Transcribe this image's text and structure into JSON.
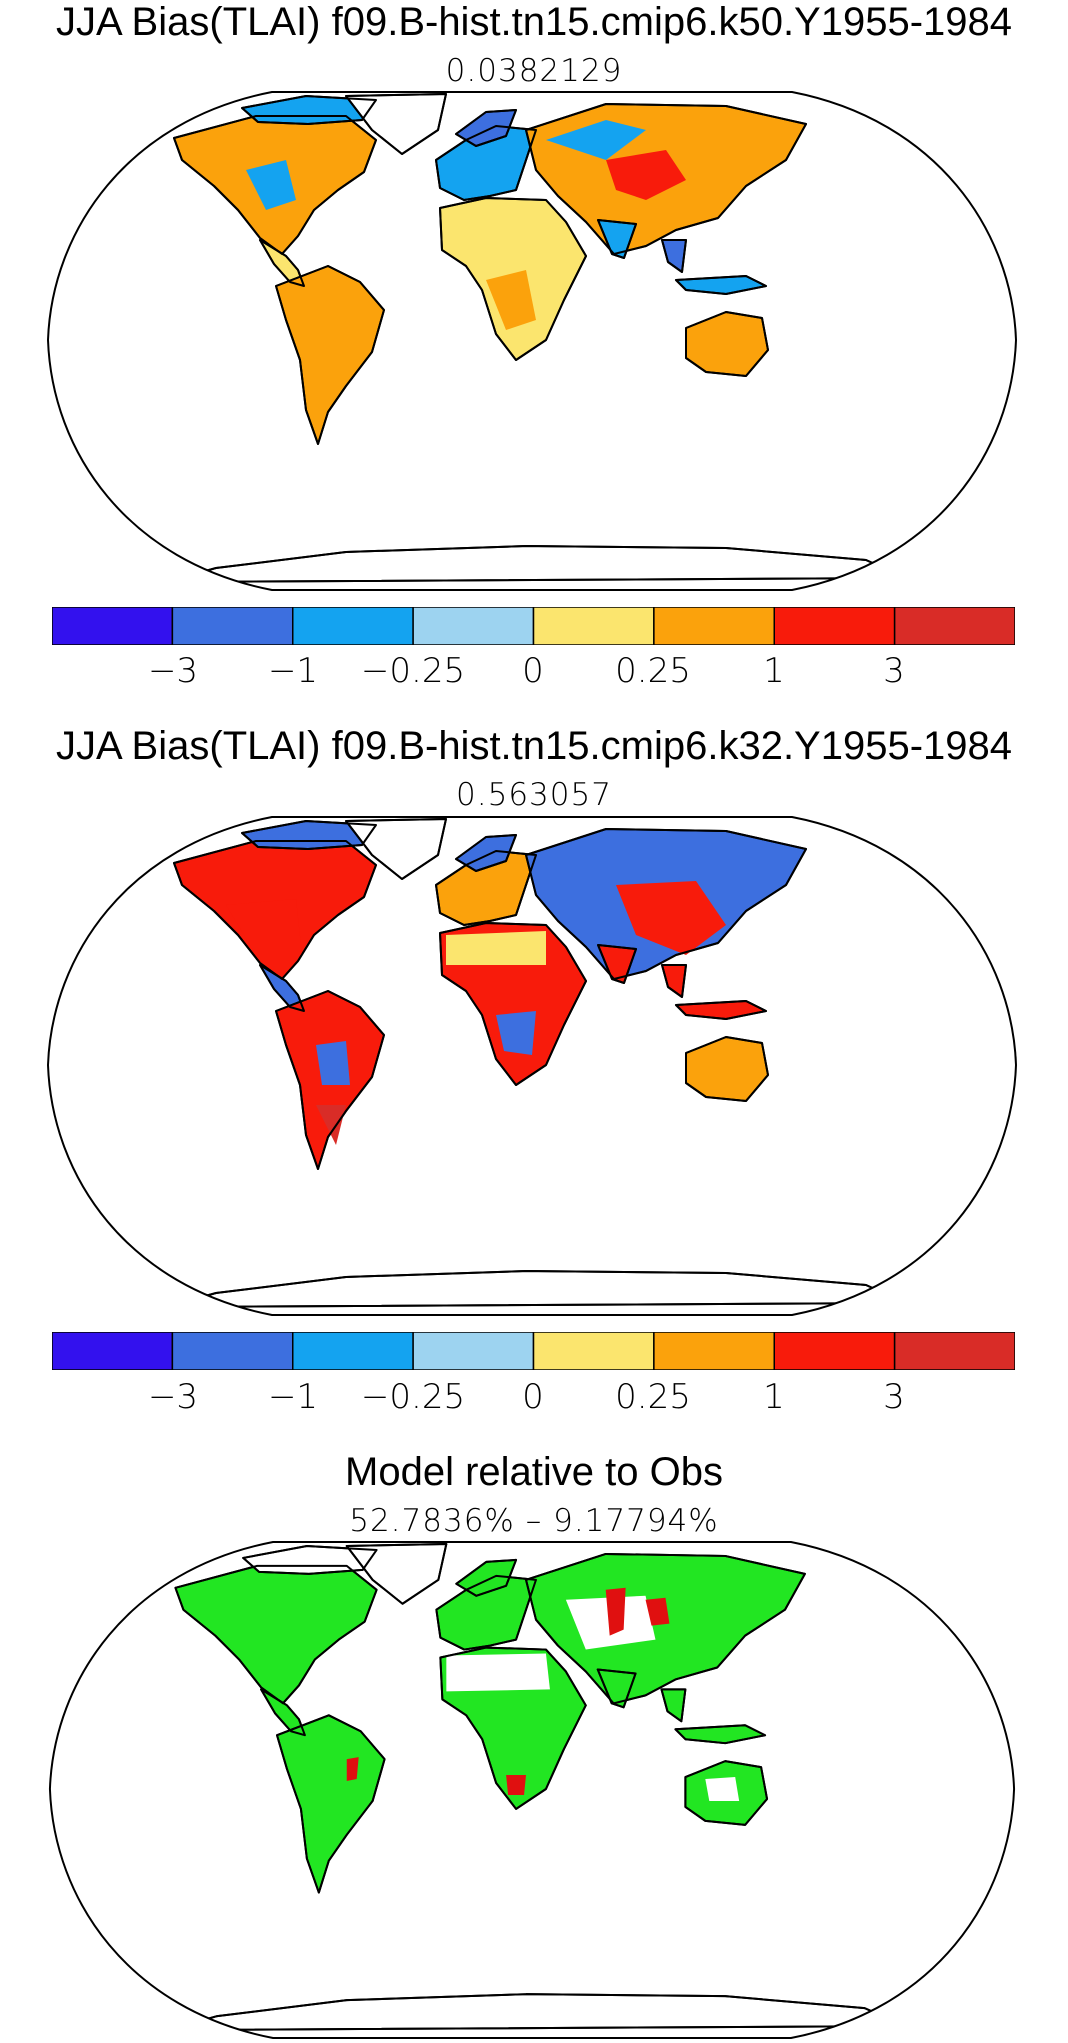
{
  "panels": [
    {
      "title": "JJA Bias(TLAI) f09.B-hist.tn15.cmip6.k50.Y1955-1984",
      "subtitle": "0.0382129"
    },
    {
      "title": "JJA Bias(TLAI) f09.B-hist.tn15.cmip6.k32.Y1955-1984",
      "subtitle": "0.563057"
    },
    {
      "title": "Model relative to Obs",
      "subtitle": "52.7836% – 9.17794%"
    }
  ],
  "colorbar": {
    "colors": [
      "#3311ee",
      "#3d6fdf",
      "#14a3f0",
      "#9dd3f0",
      "#fbe56e",
      "#fba20c",
      "#f81b0b",
      "#d92c27"
    ],
    "tick_labels": [
      "−3",
      "−1",
      "−0.25",
      "0",
      "0.25",
      "1",
      "3"
    ]
  },
  "relative_colors": {
    "agree": "#22e622",
    "disagree": "#e01010"
  }
}
